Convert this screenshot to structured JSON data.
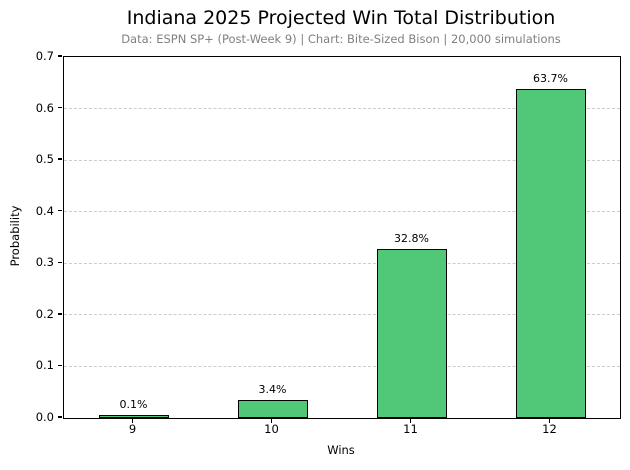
{
  "header": {
    "title": "Indiana 2025 Projected Win Total Distribution",
    "subtitle": "Data: ESPN SP+ (Post-Week 9) | Chart: Bite-Sized Bison | 20,000 simulations"
  },
  "chart_data": {
    "type": "bar",
    "title": "Indiana 2025 Projected Win Total Distribution",
    "subtitle": "Data: ESPN SP+ (Post-Week 9) | Chart: Bite-Sized Bison | 20,000 simulations",
    "categories": [
      "9",
      "10",
      "11",
      "12"
    ],
    "values": [
      0.001,
      0.034,
      0.328,
      0.637
    ],
    "bar_labels": [
      "0.1%",
      "3.4%",
      "32.8%",
      "63.7%"
    ],
    "xlabel": "Wins",
    "ylabel": "Probability",
    "ylim": [
      0,
      0.7
    ],
    "yticks": [
      "0.0",
      "0.1",
      "0.2",
      "0.3",
      "0.4",
      "0.5",
      "0.6",
      "0.7"
    ],
    "grid": "horizontal-dashed",
    "legend": "none",
    "colors": {
      "bar_fill": "#50C878",
      "bar_edge": "#000000",
      "gridline": "#cccccc",
      "subtitle_text": "#808080",
      "title_text": "#000000"
    }
  }
}
